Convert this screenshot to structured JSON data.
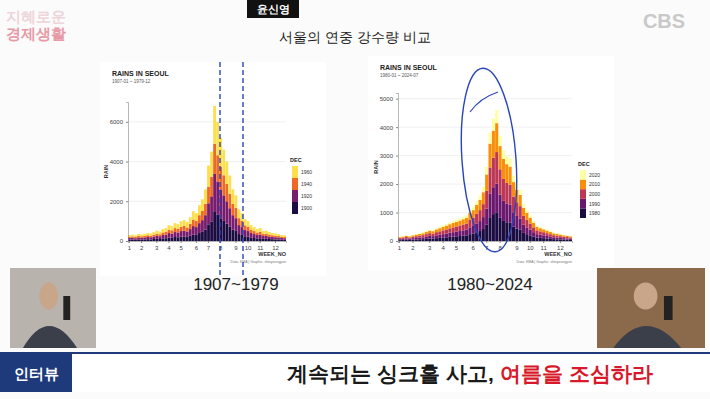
{
  "screen": {
    "show_logo": [
      "지혜로운",
      "경제생활"
    ],
    "speaker_tag": "윤신영",
    "channel": "CBS",
    "heading": "서울의 연중 강수량 비교",
    "lower_third": {
      "tag": "인터뷰",
      "headline": "계속되는 싱크홀 사고,",
      "headline_highlight": "여름을 조심하라"
    }
  },
  "chart_data": [
    {
      "type": "bar",
      "stacked": true,
      "grid": true,
      "legend": "right",
      "title": "RAINS IN SEOUL",
      "subtitle": "1907-01 ~ 1979-12",
      "ylabel": "RAIN",
      "xlabel": "WEEK_NO",
      "legend_title": "DEC",
      "note": "Data: KMA | Graphic: shinyoungyun",
      "caption": "1907~1979",
      "categories": [
        "1",
        null,
        null,
        null,
        "2",
        null,
        null,
        null,
        null,
        "3",
        null,
        null,
        null,
        "4",
        null,
        null,
        null,
        "5",
        null,
        null,
        null,
        null,
        "6",
        null,
        null,
        null,
        "7",
        null,
        null,
        null,
        "8",
        null,
        null,
        null,
        null,
        "9",
        null,
        null,
        null,
        "10",
        null,
        null,
        null,
        "11",
        null,
        null,
        null,
        null,
        "12",
        null,
        null,
        null
      ],
      "ylim": [
        0,
        7000
      ],
      "yticks": [
        0,
        2000,
        4000,
        6000
      ],
      "series": [
        {
          "name": "1900",
          "color": "#1b0c41",
          "values": [
            60,
            70,
            60,
            80,
            70,
            80,
            90,
            80,
            100,
            110,
            100,
            130,
            140,
            170,
            160,
            200,
            190,
            220,
            230,
            210,
            260,
            330,
            310,
            400,
            460,
            570,
            840,
            990,
            1500,
            1320,
            1140,
            1010,
            880,
            730,
            570,
            510,
            350,
            310,
            240,
            220,
            180,
            150,
            130,
            140,
            110,
            110,
            100,
            90,
            80,
            80,
            60,
            60
          ]
        },
        {
          "name": "1920",
          "color": "#781c6d",
          "values": [
            90,
            90,
            80,
            100,
            90,
            100,
            110,
            110,
            120,
            150,
            140,
            170,
            180,
            230,
            210,
            250,
            240,
            280,
            290,
            270,
            340,
            420,
            390,
            500,
            590,
            730,
            1060,
            1260,
            1900,
            1680,
            1460,
            1290,
            1120,
            920,
            730,
            640,
            450,
            390,
            310,
            280,
            220,
            200,
            170,
            180,
            140,
            150,
            120,
            110,
            110,
            100,
            90,
            80
          ]
        },
        {
          "name": "1940",
          "color": "#ed6925",
          "values": [
            70,
            70,
            60,
            70,
            80,
            80,
            90,
            80,
            100,
            110,
            100,
            130,
            150,
            170,
            170,
            200,
            180,
            220,
            240,
            200,
            260,
            330,
            310,
            400,
            460,
            570,
            840,
            990,
            1500,
            1320,
            1140,
            1010,
            880,
            730,
            570,
            510,
            350,
            310,
            240,
            220,
            180,
            150,
            130,
            150,
            110,
            110,
            100,
            90,
            80,
            70,
            70,
            60
          ]
        },
        {
          "name": "1960",
          "color": "#fcdf4b",
          "values": [
            80,
            90,
            80,
            100,
            90,
            100,
            110,
            110,
            130,
            150,
            140,
            170,
            180,
            230,
            210,
            250,
            240,
            280,
            290,
            270,
            340,
            420,
            390,
            500,
            590,
            730,
            1060,
            1260,
            1900,
            1680,
            1460,
            1290,
            1120,
            920,
            730,
            640,
            450,
            390,
            310,
            280,
            220,
            200,
            170,
            180,
            140,
            150,
            130,
            110,
            110,
            100,
            80,
            80
          ]
        }
      ]
    },
    {
      "type": "bar",
      "stacked": true,
      "grid": true,
      "legend": "right",
      "title": "RAINS IN SEOUL",
      "subtitle": "1980-01 ~ 2024-07",
      "ylabel": "RAIN",
      "xlabel": "WEEK_NO",
      "legend_title": "DEC",
      "note": "Data: KMA | Graphic: shinyoungyun",
      "caption": "1980~2024",
      "categories": [
        "1",
        null,
        null,
        null,
        "2",
        null,
        null,
        null,
        null,
        "3",
        null,
        null,
        null,
        "4",
        null,
        null,
        null,
        "5",
        null,
        null,
        null,
        null,
        "6",
        null,
        null,
        null,
        "7",
        null,
        null,
        null,
        "8",
        null,
        null,
        null,
        null,
        "9",
        null,
        null,
        null,
        "10",
        null,
        null,
        null,
        "11",
        null,
        null,
        null,
        null,
        "12",
        null,
        null,
        null
      ],
      "ylim": [
        0,
        5200
      ],
      "yticks": [
        0,
        1000,
        2000,
        3000,
        4000,
        5000
      ],
      "series": [
        {
          "name": "1980",
          "color": "#1b0c41",
          "values": [
            30,
            40,
            45,
            40,
            50,
            55,
            60,
            65,
            75,
            90,
            85,
            100,
            110,
            120,
            130,
            145,
            155,
            165,
            175,
            185,
            200,
            240,
            265,
            310,
            350,
            420,
            570,
            835,
            945,
            1010,
            815,
            705,
            660,
            640,
            505,
            440,
            395,
            285,
            240,
            200,
            155,
            120,
            110,
            100,
            90,
            75,
            65,
            60,
            55,
            50,
            45,
            40
          ]
        },
        {
          "name": "1990",
          "color": "#6a176e",
          "values": [
            35,
            35,
            45,
            40,
            50,
            55,
            60,
            65,
            80,
            90,
            85,
            100,
            110,
            120,
            130,
            145,
            155,
            165,
            175,
            190,
            200,
            240,
            265,
            310,
            350,
            420,
            570,
            835,
            945,
            1010,
            815,
            705,
            660,
            640,
            505,
            440,
            395,
            285,
            240,
            200,
            155,
            120,
            110,
            100,
            90,
            80,
            65,
            60,
            55,
            50,
            45,
            40
          ]
        },
        {
          "name": "2000",
          "color": "#bc3754",
          "values": [
            35,
            40,
            50,
            45,
            50,
            60,
            70,
            75,
            85,
            95,
            90,
            110,
            120,
            135,
            145,
            155,
            170,
            180,
            195,
            205,
            215,
            265,
            290,
            335,
            385,
            455,
            625,
            915,
            1035,
            1105,
            890,
            770,
            720,
            695,
            555,
            480,
            435,
            315,
            265,
            215,
            170,
            135,
            120,
            110,
            95,
            85,
            75,
            70,
            60,
            50,
            50,
            45
          ]
        },
        {
          "name": "2010",
          "color": "#f98e09",
          "values": [
            35,
            40,
            40,
            40,
            50,
            55,
            60,
            65,
            75,
            90,
            85,
            100,
            110,
            120,
            135,
            145,
            155,
            165,
            175,
            185,
            200,
            245,
            265,
            310,
            355,
            420,
            575,
            835,
            945,
            1015,
            815,
            705,
            660,
            640,
            505,
            440,
            395,
            285,
            245,
            200,
            155,
            120,
            110,
            100,
            90,
            75,
            65,
            60,
            55,
            50,
            40,
            40
          ]
        },
        {
          "name": "2020",
          "color": "#fcffa4",
          "values": [
            15,
            15,
            20,
            15,
            20,
            25,
            30,
            30,
            35,
            35,
            35,
            40,
            50,
            55,
            60,
            60,
            65,
            75,
            80,
            85,
            85,
            110,
            115,
            135,
            160,
            185,
            260,
            380,
            430,
            460,
            365,
            315,
            300,
            285,
            230,
            200,
            180,
            130,
            110,
            85,
            65,
            55,
            50,
            40,
            35,
            35,
            30,
            30,
            25,
            20,
            20,
            15
          ]
        }
      ]
    }
  ]
}
